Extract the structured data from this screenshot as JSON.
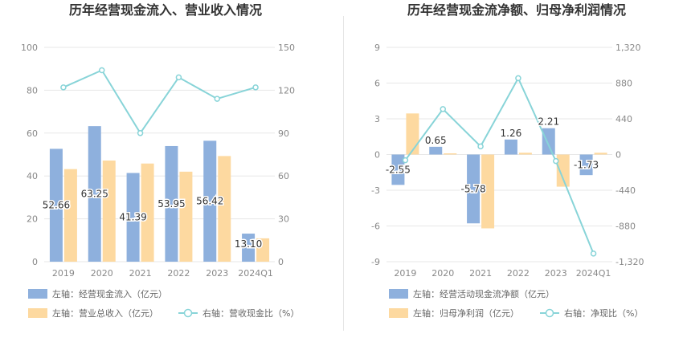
{
  "colors": {
    "bar_left": "#8eb0dd",
    "bar_right": "#fdd9a0",
    "line": "#88d4d8",
    "grid": "#e7e7e7",
    "axis_text": "#888888",
    "title": "#333333",
    "label": "#333333"
  },
  "chart_data": [
    {
      "type": "bar",
      "title": "历年经营现金流入、营业收入情况",
      "categories": [
        "2019",
        "2020",
        "2021",
        "2022",
        "2023",
        "2024Q1"
      ],
      "left_axis": {
        "ticks": [
          "0",
          "20",
          "40",
          "60",
          "80",
          "100"
        ],
        "min": 0,
        "max": 100
      },
      "right_axis": {
        "ticks": [
          "0",
          "30",
          "60",
          "90",
          "120",
          "150"
        ],
        "min": 0,
        "max": 150
      },
      "series": [
        {
          "name": "左轴：经营现金流入（亿元）",
          "kind": "bar",
          "axis": "left",
          "values": [
            52.66,
            63.25,
            41.39,
            53.95,
            56.42,
            13.1
          ],
          "labels": [
            "52.66",
            "63.25",
            "41.39",
            "53.95",
            "56.42",
            "13.10"
          ]
        },
        {
          "name": "左轴：营业总收入（亿元）",
          "kind": "bar",
          "axis": "left",
          "values": [
            43.2,
            47.2,
            45.8,
            42.0,
            49.3,
            10.9
          ]
        },
        {
          "name": "右轴：营收现金比（%）",
          "kind": "line",
          "axis": "right",
          "values": [
            122,
            134,
            90,
            129,
            114,
            122
          ]
        }
      ],
      "legend": [
        {
          "label": "左轴：经营现金流入（亿元）",
          "kind": "bar",
          "series": 0
        },
        {
          "label": "左轴：营业总收入（亿元）",
          "kind": "bar",
          "series": 1
        },
        {
          "label": "右轴：营收现金比（%）",
          "kind": "line",
          "series": 2
        }
      ]
    },
    {
      "type": "bar",
      "title": "历年经营现金流净额、归母净利润情况",
      "categories": [
        "2019",
        "2020",
        "2021",
        "2022",
        "2023",
        "2024Q1"
      ],
      "left_axis": {
        "ticks": [
          "-9",
          "-6",
          "-3",
          "0",
          "3",
          "6",
          "9"
        ],
        "min": -9,
        "max": 9
      },
      "right_axis": {
        "ticks": [
          "-1,320",
          "-880",
          "-440",
          "0",
          "440",
          "880",
          "1,320"
        ],
        "min": -1320,
        "max": 1320
      },
      "series": [
        {
          "name": "左轴：经营活动现金流净额（亿元）",
          "kind": "bar",
          "axis": "left",
          "values": [
            -2.55,
            0.65,
            -5.78,
            1.26,
            2.21,
            -1.73
          ],
          "labels": [
            "-2.55",
            "0.65",
            "-5.78",
            "1.26",
            "2.21",
            "-1.73"
          ]
        },
        {
          "name": "左轴：归母净利润（亿元）",
          "kind": "bar",
          "axis": "left",
          "values": [
            3.45,
            0.1,
            -6.2,
            0.15,
            -2.7,
            0.15
          ]
        },
        {
          "name": "右轴：净现比（%）",
          "kind": "line",
          "axis": "right",
          "values": [
            -70,
            560,
            100,
            940,
            -80,
            -1220
          ]
        }
      ],
      "legend": [
        {
          "label": "左轴：经营活动现金流净额（亿元）",
          "kind": "bar",
          "series": 0
        },
        {
          "label": "左轴：归母净利润（亿元）",
          "kind": "bar",
          "series": 1
        },
        {
          "label": "右轴：净现比（%）",
          "kind": "line",
          "series": 2
        }
      ]
    }
  ]
}
